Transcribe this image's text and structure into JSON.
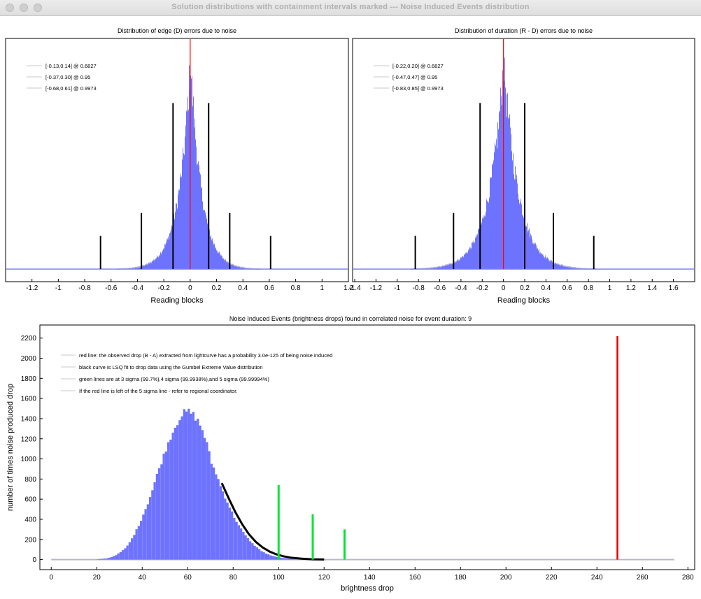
{
  "window": {
    "title": "Solution distributions with containment intervals marked --- Noise Induced Events distribution"
  },
  "colors": {
    "bars": "#6e73ff",
    "bar_edge": "#b4b4cf",
    "center_line": "#ff0000",
    "markers": "#000000",
    "sigma_lines": "#00e632",
    "observed": "#e60000",
    "fit": "#000000"
  },
  "chart_data": [
    {
      "id": "edge",
      "type": "bar",
      "title": "Distribution of edge (D) errors due to noise",
      "xlabel": "Reading blocks",
      "ylabel": "",
      "xlim": [
        -1.4,
        1.2
      ],
      "xticks": [
        -1.2,
        -1,
        -0.8,
        -0.6,
        -0.4,
        -0.2,
        0,
        0.2,
        0.4,
        0.6,
        0.8,
        1,
        1.2
      ],
      "xticklabels": [
        "-1.2",
        "-1",
        "-0.8",
        "-0.6",
        "-0.4",
        "-0.2",
        "0",
        "0.2",
        "0.4",
        "0.6",
        "0.8",
        "1",
        "1.2"
      ],
      "distribution": {
        "center": 0,
        "peak": 1.0,
        "scale_left": 0.09,
        "scale_right": 0.085
      },
      "center_line": 0,
      "intervals": [
        {
          "label": "[-0.13,0.14] @ 0.6827",
          "low": -0.13,
          "high": 0.14,
          "height": 0.8
        },
        {
          "label": "[-0.37,0.30] @ 0.95",
          "low": -0.37,
          "high": 0.3,
          "height": 0.27
        },
        {
          "label": "[-0.68,0.61] @ 0.9973",
          "low": -0.68,
          "high": 0.61,
          "height": 0.16
        }
      ],
      "legend_position": "top-left",
      "grid": false
    },
    {
      "id": "duration",
      "type": "bar",
      "title": "Distribution of duration (R - D) errors due to noise",
      "xlabel": "Reading blocks",
      "ylabel": "",
      "xlim": [
        -1.42,
        1.8
      ],
      "xticks": [
        -1.4,
        -1.2,
        -1,
        -0.8,
        -0.6,
        -0.4,
        -0.2,
        0,
        0.2,
        0.4,
        0.6,
        0.8,
        1,
        1.2,
        1.4,
        1.6
      ],
      "xticklabels": [
        "-1.4",
        "-1.2",
        "-1",
        "-0.8",
        "-0.6",
        "-0.4",
        "-0.2",
        "0",
        "0.2",
        "0.4",
        "0.6",
        "0.8",
        "1",
        "1.2",
        "1.4",
        "1.6"
      ],
      "distribution": {
        "center": 0,
        "peak": 1.0,
        "scale_left": 0.14,
        "scale_right": 0.14
      },
      "center_line": 0,
      "intervals": [
        {
          "label": "[-0.22,0.20] @ 0.6827",
          "low": -0.22,
          "high": 0.2,
          "height": 0.8
        },
        {
          "label": "[-0.47,0.47] @ 0.95",
          "low": -0.47,
          "high": 0.47,
          "height": 0.27
        },
        {
          "label": "[-0.83,0.85] @ 0.9973",
          "low": -0.83,
          "high": 0.85,
          "height": 0.16
        }
      ],
      "legend_position": "top-left",
      "grid": false
    },
    {
      "id": "noise",
      "type": "bar",
      "title": "Noise Induced Events (brightness drops) found in correlated noise for event duration: 9",
      "xlabel": "brightness drop",
      "ylabel": "number of times noise produced drop",
      "xlim": [
        -5,
        283
      ],
      "ylim": [
        -100,
        2330
      ],
      "xticks": [
        0,
        20,
        40,
        60,
        80,
        100,
        120,
        140,
        160,
        180,
        200,
        220,
        240,
        260,
        280
      ],
      "yticks": [
        0,
        200,
        400,
        600,
        800,
        1000,
        1200,
        1400,
        1600,
        1800,
        2000,
        2200
      ],
      "histogram": {
        "bin_width": 1,
        "bin_start": [
          20,
          22,
          24,
          26,
          28,
          30,
          32,
          34,
          36,
          38,
          40,
          42,
          44,
          46,
          48,
          50,
          52,
          54,
          56,
          58,
          60,
          62,
          64,
          66,
          68,
          70,
          72,
          74,
          76,
          78,
          80,
          82,
          84,
          86,
          88,
          90,
          92,
          94,
          96,
          98,
          100,
          102,
          104,
          106,
          108,
          110,
          112,
          114,
          116,
          118
        ],
        "counts": [
          3,
          8,
          12,
          25,
          45,
          75,
          110,
          170,
          250,
          340,
          450,
          560,
          690,
          840,
          970,
          1100,
          1220,
          1320,
          1410,
          1460,
          1470,
          1440,
          1380,
          1290,
          1150,
          960,
          860,
          730,
          620,
          520,
          420,
          340,
          270,
          210,
          160,
          120,
          85,
          60,
          42,
          30,
          20,
          14,
          10,
          7,
          5,
          3,
          2,
          1,
          0,
          0
        ]
      },
      "fit_curve": {
        "label": "Gumbel Extreme Value",
        "x": [
          75,
          78,
          81,
          84,
          87,
          90,
          93,
          96,
          99,
          102,
          105,
          110,
          115,
          120
        ],
        "y": [
          760,
          610,
          470,
          350,
          250,
          175,
          120,
          80,
          52,
          33,
          20,
          9,
          3,
          1
        ]
      },
      "observed_drop": {
        "x": 249,
        "value": 2220
      },
      "sigma_lines": [
        {
          "x": 100,
          "value": 740
        },
        {
          "x": 115,
          "value": 450
        },
        {
          "x": 129,
          "value": 300
        }
      ],
      "baseline": {
        "x_end": 274
      },
      "legend": [
        "red line: the observed drop (B - A) extracted from lightcurve has a probability 3.0e-125 of being noise induced",
        "black curve is LSQ fit to drop data using the Gumbel Extreme Value distribution",
        "green lines are at 3 sigma (99.7%),4 sigma (99.9938%),and 5 sigma (99.99994%)",
        "If the red line is left of the 5 sigma line - refer to regional coordinator."
      ],
      "legend_position": "top-left",
      "grid": false
    }
  ]
}
